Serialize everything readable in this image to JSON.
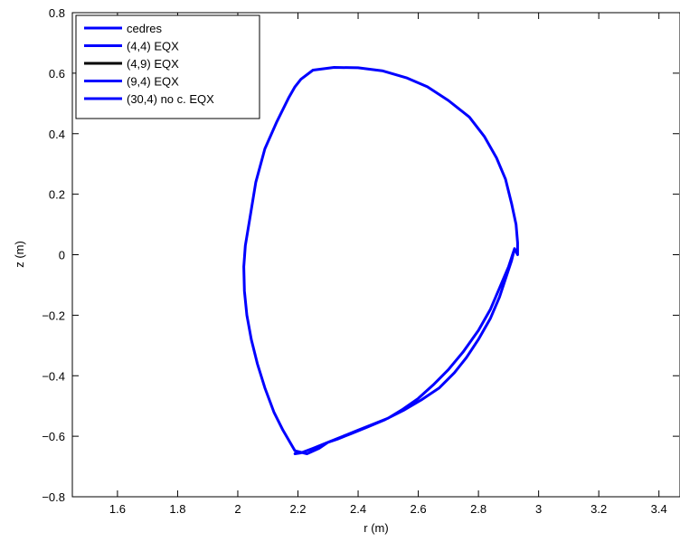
{
  "chart_data": {
    "type": "line",
    "title": "",
    "xlabel": "r (m)",
    "ylabel": "z (m)",
    "xlim": [
      1.45,
      3.47
    ],
    "ylim": [
      -0.8,
      0.8
    ],
    "xticks": [
      "1.6",
      "1.8",
      "2",
      "2.2",
      "2.4",
      "2.6",
      "2.8",
      "3",
      "3.2",
      "3.4"
    ],
    "yticks": [
      "0.8",
      "0.6",
      "0.4",
      "0.2",
      "0",
      "−0.2",
      "−0.4",
      "−0.6",
      "−0.8"
    ],
    "grid": false,
    "legend_position": "top-left",
    "series": [
      {
        "name": "cedres",
        "color": "#0000ff",
        "x": [
          2.19,
          2.21,
          2.25,
          2.3,
          2.35,
          2.4,
          2.45,
          2.5,
          2.55,
          2.6,
          2.65,
          2.7,
          2.75,
          2.8,
          2.84,
          2.87,
          2.9,
          2.92,
          2.93,
          2.93,
          2.925,
          2.91,
          2.89,
          2.86,
          2.82,
          2.77,
          2.7,
          2.63,
          2.56,
          2.48,
          2.4,
          2.32,
          2.25,
          2.21,
          2.19,
          2.17,
          2.13,
          2.09,
          2.06,
          2.04,
          2.025,
          2.02,
          2.022,
          2.03,
          2.045,
          2.065,
          2.09,
          2.12,
          2.15,
          2.19,
          2.23,
          2.27,
          2.3,
          2.33,
          2.38,
          2.43,
          2.49,
          2.55,
          2.61,
          2.67,
          2.72,
          2.76,
          2.8,
          2.84,
          2.87,
          2.89,
          2.91,
          2.92,
          2.93,
          2.93
        ],
        "y": [
          -0.658,
          -0.655,
          -0.64,
          -0.62,
          -0.6,
          -0.58,
          -0.56,
          -0.54,
          -0.51,
          -0.475,
          -0.43,
          -0.38,
          -0.32,
          -0.25,
          -0.18,
          -0.11,
          -0.04,
          0.02,
          0.0,
          0.04,
          0.1,
          0.17,
          0.25,
          0.32,
          0.39,
          0.455,
          0.51,
          0.555,
          0.585,
          0.608,
          0.618,
          0.619,
          0.61,
          0.58,
          0.555,
          0.52,
          0.44,
          0.35,
          0.24,
          0.12,
          0.03,
          -0.04,
          -0.12,
          -0.2,
          -0.28,
          -0.36,
          -0.44,
          -0.52,
          -0.58,
          -0.648,
          -0.658,
          -0.64,
          -0.62,
          -0.61,
          -0.59,
          -0.57,
          -0.545,
          -0.515,
          -0.48,
          -0.44,
          -0.39,
          -0.34,
          -0.28,
          -0.21,
          -0.14,
          -0.08,
          -0.02,
          0.02,
          0.0,
          0.0
        ]
      },
      {
        "name": "(4,4) EQX",
        "color": "#0000ff"
      },
      {
        "name": "(4,9) EQX",
        "color": "#000000"
      },
      {
        "name": "(9,4) EQX",
        "color": "#0000ff"
      },
      {
        "name": "(30,4) no c. EQX",
        "color": "#0000ff"
      }
    ]
  }
}
